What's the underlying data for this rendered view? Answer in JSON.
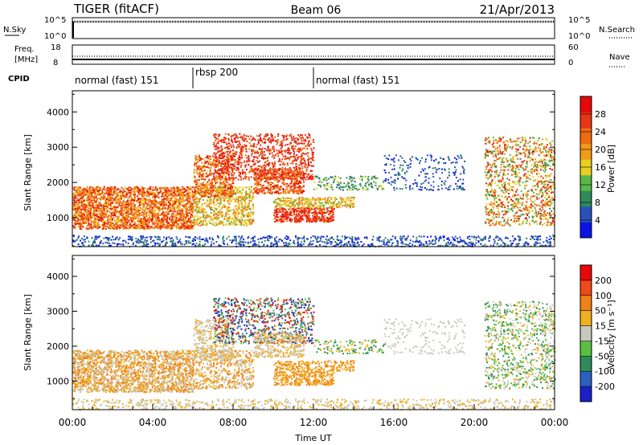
{
  "header": {
    "radar": "TIGER (fitACF)",
    "beam": "Beam 06",
    "date": "21/Apr/2013"
  },
  "top_panels": {
    "nsky_label": "N.Sky",
    "nsky_ticks": [
      "10^5",
      "10^0"
    ],
    "nsearch_label": "N.Search",
    "nsearch_ticks": [
      "10^5",
      "10^0"
    ],
    "freq_label_1": "Freq.",
    "freq_label_2": "[MHz]",
    "freq_ticks": [
      "18",
      "8"
    ],
    "nave_label": "Nave",
    "nave_ticks": [
      "60",
      "0"
    ],
    "cpid_label": "CPID"
  },
  "cpid_segments": [
    {
      "label": "normal (fast) 151",
      "start_hour": 0,
      "end_hour": 6
    },
    {
      "label": "rbsp 200",
      "start_hour": 6,
      "end_hour": 12
    },
    {
      "label": "normal (fast) 151",
      "start_hour": 12,
      "end_hour": 24
    }
  ],
  "chart_data": [
    {
      "type": "heatmap",
      "ylabel": "Slant Range [km]",
      "xlim": [
        0,
        24
      ],
      "ylim": [
        180,
        4600
      ],
      "yticks": [
        "1000",
        "2000",
        "3000",
        "4000"
      ],
      "colorbar": {
        "label": "Power [dB]",
        "ticks": [
          "4",
          "8",
          "12",
          "16",
          "20",
          "24",
          "28"
        ],
        "range": [
          0,
          30
        ],
        "colors": [
          "#0a14e6",
          "#2a50b8",
          "#2e8a5a",
          "#58b848",
          "#e8d020",
          "#f29a18",
          "#f06a10",
          "#e83414",
          "#e80808"
        ]
      }
    },
    {
      "type": "heatmap",
      "ylabel": "Slant Range [km]",
      "xlabel": "Time UT",
      "xlim": [
        0,
        24
      ],
      "ylim": [
        180,
        4600
      ],
      "xticks": [
        "00:00",
        "04:00",
        "08:00",
        "12:00",
        "16:00",
        "20:00",
        "00:00"
      ],
      "yticks": [
        "1000",
        "2000",
        "3000",
        "4000"
      ],
      "colorbar": {
        "label": "Velocity [m s⁻¹]",
        "ticks": [
          "200",
          "100",
          "50",
          "15",
          "-15",
          "-50",
          "-100",
          "-200"
        ],
        "colors": [
          "#1a20c8",
          "#2a60c0",
          "#2e8a5a",
          "#58c040",
          "#c8c8c0",
          "#f0b020",
          "#f08018",
          "#f04818",
          "#e80808"
        ]
      }
    }
  ]
}
